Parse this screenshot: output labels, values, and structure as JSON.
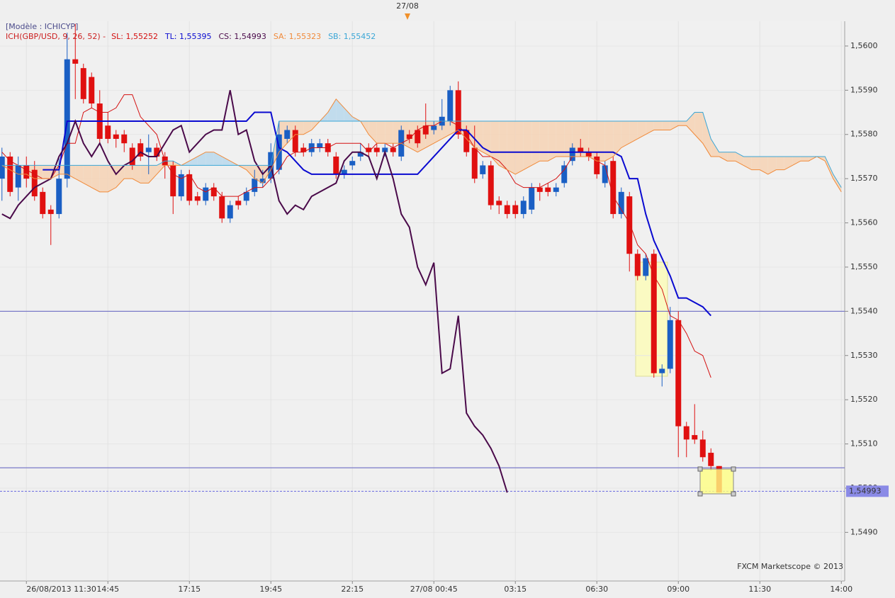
{
  "chart_data": {
    "type": "candlestick",
    "header": "[Modèle : ICHICYP]",
    "indicator": "ICH(GBP/USD, 9, 26, 52) -",
    "marker_label": "27/08",
    "watermark": "FXCM Marketscope © 2013",
    "up_color": "#1a5fc4",
    "down_color": "#e01010",
    "grid": true,
    "categories": [
      null,
      null,
      null,
      "26/08/2013 11:30",
      null,
      null,
      null,
      null,
      null,
      null,
      null,
      null,
      null,
      "14:45",
      null,
      null,
      null,
      null,
      null,
      null,
      null,
      null,
      null,
      "17:15",
      null,
      null,
      null,
      null,
      null,
      null,
      null,
      null,
      null,
      "19:45",
      null,
      null,
      null,
      null,
      null,
      null,
      null,
      null,
      null,
      "22:15",
      null,
      null,
      null,
      null,
      null,
      null,
      null,
      null,
      null,
      "27/08 00:45",
      null,
      null,
      null,
      null,
      null,
      null,
      null,
      null,
      null,
      "03:15",
      null,
      null,
      null,
      null,
      null,
      null,
      null,
      null,
      null,
      "06:30",
      null,
      null,
      null,
      null,
      null,
      null,
      null,
      null,
      null,
      "09:00",
      null,
      null,
      null,
      null,
      null,
      null,
      null,
      null,
      null,
      "11:30",
      null,
      null,
      null,
      null,
      null,
      null,
      null,
      null,
      null,
      "14:00"
    ],
    "open": [
      1.557,
      1.5575,
      1.5568,
      1.5573,
      1.5572,
      1.5567,
      1.5563,
      1.5562,
      1.557,
      1.5597,
      1.5595,
      1.5593,
      1.5587,
      1.5582,
      1.558,
      1.558,
      1.5577,
      1.5578,
      1.5576,
      1.5577,
      1.5575,
      1.5573,
      1.5566,
      1.5571,
      1.5566,
      1.5565,
      1.5568,
      1.5566,
      1.5561,
      1.5565,
      1.5565,
      1.5567,
      1.5569,
      1.557,
      1.5572,
      1.5579,
      1.5581,
      1.5577,
      1.5576,
      1.5577,
      1.5578,
      1.5575,
      1.5571,
      1.5573,
      1.5575,
      1.5577,
      1.5577,
      1.5576,
      1.5577,
      1.5575,
      1.558,
      1.5581,
      1.5582,
      1.5581,
      1.5582,
      1.5583,
      1.559,
      1.5581,
      1.5577,
      1.5571,
      1.5573,
      1.5565,
      1.5564,
      1.5564,
      1.5562,
      1.5563,
      1.5568,
      1.5568,
      1.5567,
      1.5569,
      1.5574,
      1.5577,
      1.5576,
      1.5575,
      1.5569,
      1.5574,
      1.5562,
      1.5566,
      1.5553,
      1.5548,
      1.5553,
      1.5526,
      1.5527,
      1.5538,
      1.5514,
      1.5512,
      1.5511,
      1.5508,
      1.5505,
      null,
      null,
      null,
      null,
      null,
      null,
      null,
      null,
      null,
      null,
      null,
      null,
      null,
      null,
      null
    ],
    "high": [
      1.5577,
      1.5576,
      1.5575,
      1.5575,
      1.5574,
      1.5568,
      1.5564,
      1.5575,
      1.5603,
      1.5605,
      1.5596,
      1.5594,
      1.559,
      1.5585,
      1.5581,
      1.5581,
      1.5578,
      1.5579,
      1.558,
      1.5578,
      1.5576,
      1.5574,
      1.5572,
      1.5572,
      1.5567,
      1.5569,
      1.5569,
      1.5567,
      1.5565,
      1.5566,
      1.5568,
      1.5572,
      1.5572,
      1.5578,
      1.5583,
      1.5582,
      1.5582,
      1.5578,
      1.5579,
      1.5579,
      1.5579,
      1.5576,
      1.5573,
      1.5575,
      1.5578,
      1.5578,
      1.5578,
      1.5578,
      1.5578,
      1.5582,
      1.5581,
      1.5582,
      1.5587,
      1.5583,
      1.5588,
      1.5591,
      1.5592,
      1.5582,
      1.5582,
      1.5574,
      1.5574,
      1.5566,
      1.5565,
      1.5565,
      1.5566,
      1.5569,
      1.5569,
      1.5569,
      1.5569,
      1.5574,
      1.5578,
      1.5579,
      1.5577,
      1.5576,
      1.5574,
      1.5575,
      1.5568,
      1.5567,
      1.5554,
      1.5553,
      1.5554,
      1.5528,
      1.5541,
      1.554,
      1.5515,
      1.5519,
      1.5513,
      1.5509,
      1.5505,
      null,
      null,
      null,
      null,
      null,
      null,
      null,
      null,
      null,
      null,
      null,
      null,
      null,
      null,
      null
    ],
    "low": [
      1.5565,
      1.5566,
      1.5565,
      1.5568,
      1.5565,
      1.5561,
      1.5555,
      1.5561,
      1.5568,
      1.5588,
      1.5587,
      1.5586,
      1.5578,
      1.5578,
      1.5577,
      1.5576,
      1.5572,
      1.5574,
      1.5571,
      1.5574,
      1.557,
      1.5562,
      1.5565,
      1.5564,
      1.5564,
      1.5564,
      1.5565,
      1.556,
      1.556,
      1.5563,
      1.5564,
      1.5566,
      1.5568,
      1.5569,
      1.5571,
      1.5578,
      1.5575,
      1.5575,
      1.5575,
      1.5576,
      1.5575,
      1.557,
      1.557,
      1.5572,
      1.5574,
      1.5575,
      1.5575,
      1.5575,
      1.5575,
      1.5574,
      1.5578,
      1.5577,
      1.5579,
      1.558,
      1.5581,
      1.5582,
      1.5579,
      1.5575,
      1.5569,
      1.557,
      1.5563,
      1.5562,
      1.5561,
      1.5561,
      1.5561,
      1.5562,
      1.5565,
      1.5566,
      1.5566,
      1.5568,
      1.5573,
      1.5575,
      1.5574,
      1.557,
      1.5568,
      1.5561,
      1.5561,
      1.5549,
      1.5547,
      1.5547,
      1.5525,
      1.5523,
      1.5526,
      1.5507,
      1.5507,
      1.551,
      1.5506,
      1.5504,
      1.5499,
      null,
      null,
      null,
      null,
      null,
      null,
      null,
      null,
      null,
      null,
      null,
      null,
      null,
      null,
      null
    ],
    "close": [
      1.5575,
      1.5567,
      1.5573,
      1.557,
      1.5566,
      1.5562,
      1.5562,
      1.557,
      1.5597,
      1.5596,
      1.5588,
      1.5587,
      1.5579,
      1.5579,
      1.5579,
      1.5578,
      1.5573,
      1.5575,
      1.5577,
      1.5575,
      1.5573,
      1.5566,
      1.5571,
      1.5565,
      1.5565,
      1.5568,
      1.5566,
      1.5561,
      1.5564,
      1.5564,
      1.5567,
      1.557,
      1.557,
      1.5576,
      1.558,
      1.5581,
      1.5576,
      1.5576,
      1.5578,
      1.5578,
      1.5576,
      1.5571,
      1.5572,
      1.5574,
      1.5576,
      1.5576,
      1.5576,
      1.5577,
      1.5576,
      1.5581,
      1.5579,
      1.5578,
      1.558,
      1.5582,
      1.5584,
      1.559,
      1.558,
      1.5576,
      1.557,
      1.5573,
      1.5564,
      1.5564,
      1.5562,
      1.5562,
      1.5565,
      1.5568,
      1.5567,
      1.5567,
      1.5568,
      1.5573,
      1.5577,
      1.5576,
      1.5575,
      1.5571,
      1.5573,
      1.5562,
      1.5567,
      1.5553,
      1.5548,
      1.5552,
      1.5526,
      1.5527,
      1.5538,
      1.5514,
      1.5511,
      1.5511,
      1.5507,
      1.5505,
      1.5499,
      null,
      null,
      null,
      null,
      null,
      null,
      null,
      null,
      null,
      null,
      null,
      null,
      null,
      null,
      null
    ],
    "series": [
      {
        "name": "SL: 1,55252",
        "color": "#d41010",
        "values": [
          1.5576,
          1.5574,
          1.5573,
          1.5572,
          1.5571,
          1.557,
          1.557,
          1.5573,
          1.5578,
          1.5578,
          1.5585,
          1.5586,
          1.5585,
          1.5585,
          1.5586,
          1.5589,
          1.5589,
          1.5584,
          1.5582,
          1.558,
          1.5574,
          1.5571,
          1.557,
          1.5571,
          1.5568,
          1.5567,
          1.5568,
          1.5566,
          1.5566,
          1.5566,
          1.5567,
          1.5568,
          1.5568,
          1.557,
          1.5572,
          1.5575,
          1.5576,
          1.5576,
          1.5577,
          1.5577,
          1.5577,
          1.5578,
          1.5578,
          1.5578,
          1.5578,
          1.5576,
          1.5578,
          1.5578,
          1.5577,
          1.5578,
          1.5579,
          1.5581,
          1.5582,
          1.5582,
          1.5583,
          1.5583,
          1.5582,
          1.558,
          1.5577,
          1.5575,
          1.5575,
          1.5574,
          1.5572,
          1.5569,
          1.5568,
          1.5568,
          1.5568,
          1.5569,
          1.557,
          1.5572,
          1.5575,
          1.5575,
          1.5575,
          1.5574,
          1.5573,
          1.5566,
          1.5563,
          1.556,
          1.5555,
          1.5553,
          1.5548,
          1.5545,
          1.5539,
          1.5538,
          1.5535,
          1.5531,
          1.553,
          1.5525,
          null,
          null,
          null,
          null,
          null,
          null,
          null,
          null,
          null,
          null,
          null,
          null,
          null,
          null,
          null,
          null
        ]
      },
      {
        "name": "TL: 1,55395",
        "color": "#0a0ad0",
        "values": [
          null,
          null,
          null,
          null,
          null,
          1.5572,
          1.5572,
          1.5572,
          1.5583,
          1.5583,
          1.5583,
          1.5583,
          1.5583,
          1.5583,
          1.5583,
          1.5583,
          1.5583,
          1.5583,
          1.5583,
          1.5583,
          1.5583,
          1.5583,
          1.5583,
          1.5583,
          1.5583,
          1.5583,
          1.5583,
          1.5583,
          1.5583,
          1.5583,
          1.5583,
          1.5585,
          1.5585,
          1.5585,
          1.5577,
          1.5576,
          1.5574,
          1.5572,
          1.5571,
          1.5571,
          1.5571,
          1.5571,
          1.5571,
          1.5571,
          1.5571,
          1.5571,
          1.5571,
          1.5571,
          1.5571,
          1.5571,
          1.5571,
          1.5571,
          1.5573,
          1.5575,
          1.5577,
          1.5579,
          1.5581,
          1.5581,
          1.5579,
          1.5577,
          1.5576,
          1.5576,
          1.5576,
          1.5576,
          1.5576,
          1.5576,
          1.5576,
          1.5576,
          1.5576,
          1.5576,
          1.5576,
          1.5576,
          1.5576,
          1.5576,
          1.5576,
          1.5576,
          1.5575,
          1.557,
          1.557,
          1.5562,
          1.5556,
          1.5552,
          1.5548,
          1.5543,
          1.5543,
          1.5542,
          1.5541,
          1.5539,
          null,
          null,
          null,
          null,
          null,
          null,
          null,
          null,
          null,
          null,
          null,
          null,
          null,
          null,
          null,
          null
        ]
      },
      {
        "name": "CS: 1,54993",
        "color": "#4a0a4a",
        "values": [
          1.5562,
          1.5561,
          1.5564,
          1.5566,
          1.5568,
          1.5569,
          1.557,
          1.5575,
          1.5578,
          1.5583,
          1.5578,
          1.5575,
          1.5578,
          1.5574,
          1.5571,
          1.5573,
          1.5574,
          1.5576,
          1.5575,
          1.5575,
          1.5578,
          1.5581,
          1.5582,
          1.5576,
          1.5578,
          1.558,
          1.5581,
          1.5581,
          1.559,
          1.558,
          1.5581,
          1.5574,
          1.5571,
          1.5573,
          1.5565,
          1.5562,
          1.5564,
          1.5563,
          1.5566,
          1.5567,
          1.5568,
          1.5569,
          1.5574,
          1.5576,
          1.5576,
          1.5575,
          1.557,
          1.5576,
          1.557,
          1.5562,
          1.5559,
          1.555,
          1.5546,
          1.5551,
          1.5526,
          1.5527,
          1.5539,
          1.5517,
          1.5514,
          1.5512,
          1.5509,
          1.5505,
          1.5499,
          null,
          null,
          null,
          null,
          null,
          null,
          null,
          null,
          null,
          null,
          null,
          null,
          null,
          null,
          null,
          null,
          null,
          null,
          null,
          null,
          null,
          null,
          null,
          null,
          null,
          null,
          null,
          null,
          null,
          null,
          null,
          null,
          null,
          null,
          null,
          null,
          null,
          null,
          null,
          null,
          null
        ]
      },
      {
        "name": "SA: 1,55323",
        "color": "#f08a3a",
        "values": [
          1.5573,
          1.5572,
          1.5571,
          1.5571,
          1.557,
          1.557,
          1.557,
          1.5571,
          1.5571,
          1.557,
          1.5569,
          1.5568,
          1.5567,
          1.5567,
          1.5568,
          1.557,
          1.557,
          1.5569,
          1.5569,
          1.5571,
          1.5573,
          1.5573,
          1.5573,
          1.5574,
          1.5575,
          1.5576,
          1.5576,
          1.5575,
          1.5574,
          1.5573,
          1.5572,
          1.557,
          1.5569,
          1.5572,
          1.5576,
          1.5578,
          1.558,
          1.558,
          1.5581,
          1.5583,
          1.5585,
          1.5588,
          1.5586,
          1.5584,
          1.5583,
          1.558,
          1.5578,
          1.5578,
          1.5578,
          1.5578,
          1.5577,
          1.5576,
          1.5577,
          1.5578,
          1.5579,
          1.558,
          1.5581,
          1.5579,
          1.5577,
          1.5576,
          1.5575,
          1.5573,
          1.5572,
          1.5571,
          1.5572,
          1.5573,
          1.5574,
          1.5574,
          1.5575,
          1.5575,
          1.5575,
          1.5575,
          1.5575,
          1.5574,
          1.5574,
          1.5575,
          1.5577,
          1.5578,
          1.5579,
          1.558,
          1.5581,
          1.5581,
          1.5581,
          1.5582,
          1.5582,
          1.558,
          1.5578,
          1.5575,
          1.5575,
          1.5574,
          1.5574,
          1.5573,
          1.5572,
          1.5572,
          1.5571,
          1.5572,
          1.5572,
          1.5573,
          1.5574,
          1.5574,
          1.5575,
          1.5574,
          1.557,
          1.5567
        ]
      },
      {
        "name": "SB: 1,55452",
        "color": "#3aa6d6",
        "values": [
          1.5573,
          1.5573,
          1.5573,
          1.5573,
          1.5573,
          1.5573,
          1.5573,
          1.5573,
          1.5573,
          1.5573,
          1.5573,
          1.5573,
          1.5573,
          1.5573,
          1.5573,
          1.5573,
          1.5573,
          1.5573,
          1.5573,
          1.5573,
          1.5574,
          1.5574,
          1.5573,
          1.5573,
          1.5573,
          1.5573,
          1.5573,
          1.5573,
          1.5573,
          1.5573,
          1.5573,
          1.5573,
          1.5573,
          1.5573,
          1.5583,
          1.5583,
          1.5583,
          1.5583,
          1.5583,
          1.5583,
          1.5583,
          1.5583,
          1.5583,
          1.5583,
          1.5583,
          1.5583,
          1.5583,
          1.5583,
          1.5583,
          1.5583,
          1.5583,
          1.5583,
          1.5583,
          1.5583,
          1.5583,
          1.5583,
          1.5583,
          1.5583,
          1.5583,
          1.5583,
          1.5583,
          1.5583,
          1.5583,
          1.5583,
          1.5583,
          1.5583,
          1.5583,
          1.5583,
          1.5583,
          1.5583,
          1.5583,
          1.5583,
          1.5583,
          1.5583,
          1.5583,
          1.5583,
          1.5583,
          1.5583,
          1.5583,
          1.5583,
          1.5583,
          1.5583,
          1.5583,
          1.5583,
          1.5583,
          1.5585,
          1.5585,
          1.5579,
          1.5576,
          1.5576,
          1.5576,
          1.5575,
          1.5575,
          1.5575,
          1.5575,
          1.5575,
          1.5575,
          1.5575,
          1.5575,
          1.5575,
          1.5575,
          1.5575,
          1.5571,
          1.5568
        ]
      }
    ],
    "levels": [
      1.554,
      1.55046
    ],
    "last_price": {
      "value": 1.54993,
      "label": "1,54993"
    },
    "ylim": [
      1.5479,
      1.56056
    ],
    "yticks": [
      {
        "value": 1.549,
        "label": "1,5490"
      },
      {
        "value": 1.55,
        "label": "1,5500"
      },
      {
        "value": 1.551,
        "label": "1,5510"
      },
      {
        "value": 1.552,
        "label": "1,5520"
      },
      {
        "value": 1.553,
        "label": "1,5530"
      },
      {
        "value": 1.554,
        "label": "1,5540"
      },
      {
        "value": 1.555,
        "label": "1,5550"
      },
      {
        "value": 1.556,
        "label": "1,5560"
      },
      {
        "value": 1.557,
        "label": "1,5570"
      },
      {
        "value": 1.558,
        "label": "1,5580"
      },
      {
        "value": 1.559,
        "label": "1,5590"
      },
      {
        "value": 1.56,
        "label": "1,5600"
      }
    ]
  }
}
